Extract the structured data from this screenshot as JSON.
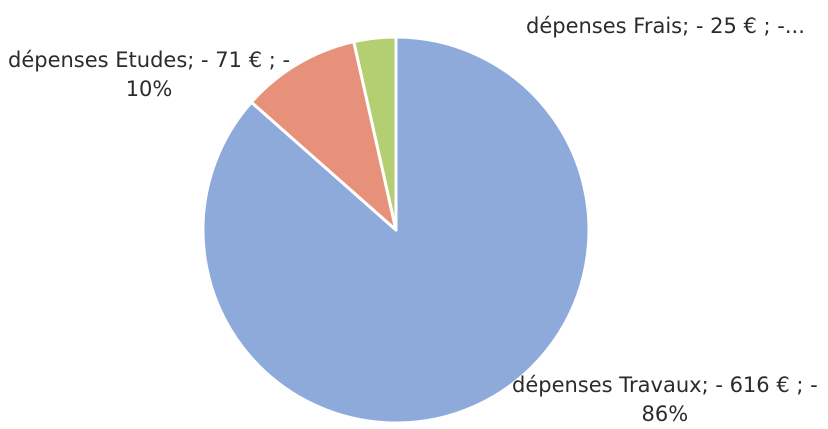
{
  "chart_data": {
    "type": "pie",
    "title": "",
    "slices": [
      {
        "category": "dépenses Travaux",
        "value": 616,
        "percent": 86,
        "label_line1": "dépenses Travaux; - 616 € ; -",
        "label_line2": "86%",
        "color": "#8eaadb"
      },
      {
        "category": "dépenses Etudes",
        "value": 71,
        "percent": 10,
        "label_line1": "dépenses Etudes; - 71 € ; -",
        "label_line2": "10%",
        "color": "#e8917a"
      },
      {
        "category": "dépenses Frais",
        "value": 25,
        "percent": 4,
        "label_line1": "dépenses Frais; - 25 € ; -...",
        "color": "#b4cf72"
      }
    ],
    "start_angle_deg": 0,
    "direction": "counterclockwise",
    "legend": "none",
    "slice_border_color": "#ffffff"
  }
}
